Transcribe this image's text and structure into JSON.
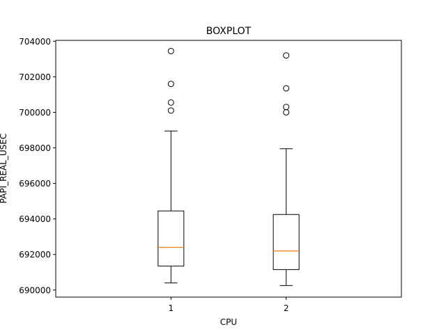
{
  "chart_data": {
    "type": "boxplot",
    "title": "BOXPLOT",
    "xlabel": "CPU",
    "ylabel": "PAPI_REAL_USEC",
    "categories": [
      "1",
      "2"
    ],
    "ylim": [
      689600,
      704050
    ],
    "yticks": [
      690000,
      692000,
      694000,
      696000,
      698000,
      700000,
      702000,
      704000
    ],
    "ytick_labels": [
      "690000",
      "692000",
      "694000",
      "696000",
      "698000",
      "700000",
      "702000",
      "704000"
    ],
    "grid": false,
    "boxes": [
      {
        "category": "1",
        "whisker_low": 690400,
        "q1": 691350,
        "median": 692400,
        "q3": 694450,
        "whisker_high": 698950,
        "outliers": [
          700100,
          700550,
          701600,
          703450
        ]
      },
      {
        "category": "2",
        "whisker_low": 690250,
        "q1": 691150,
        "median": 692200,
        "q3": 694250,
        "whisker_high": 697950,
        "outliers": [
          700000,
          700300,
          701350,
          703200
        ]
      }
    ],
    "colors": {
      "box": "#000000",
      "median": "#ff7f0e",
      "outlier_edge": "#000000"
    }
  }
}
